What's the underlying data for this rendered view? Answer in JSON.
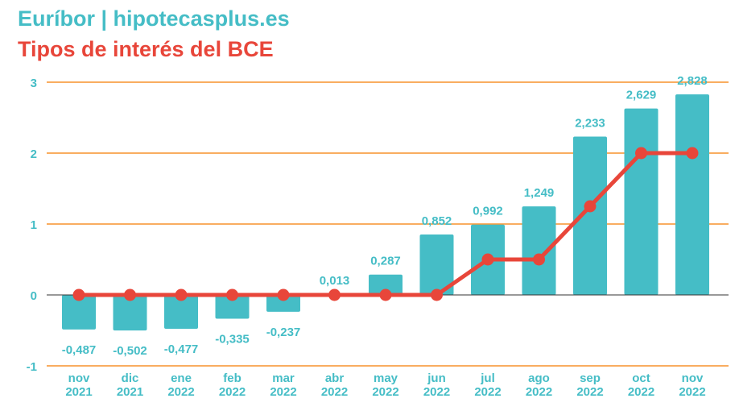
{
  "title": "Euríbor | hipotecasplus.es",
  "subtitle": "Tipos de interés del BCE",
  "colors": {
    "euribor": "#45bdc6",
    "bce": "#e8463a",
    "grid": "#f57c00",
    "zero": "#333333"
  },
  "chart_data": {
    "type": "bar",
    "categories": [
      [
        "nov",
        "2021"
      ],
      [
        "dic",
        "2021"
      ],
      [
        "ene",
        "2022"
      ],
      [
        "feb",
        "2022"
      ],
      [
        "mar",
        "2022"
      ],
      [
        "abr",
        "2022"
      ],
      [
        "may",
        "2022"
      ],
      [
        "jun",
        "2022"
      ],
      [
        "jul",
        "2022"
      ],
      [
        "ago",
        "2022"
      ],
      [
        "sep",
        "2022"
      ],
      [
        "oct",
        "2022"
      ],
      [
        "nov",
        "2022"
      ]
    ],
    "series": [
      {
        "name": "Euríbor",
        "type": "bar",
        "values": [
          -0.487,
          -0.502,
          -0.477,
          -0.335,
          -0.237,
          0.013,
          0.287,
          0.852,
          0.992,
          1.249,
          2.233,
          2.629,
          2.828
        ],
        "labels": [
          "-0,487",
          "-0,502",
          "-0,477",
          "-0,335",
          "-0,237",
          "0,013",
          "0,287",
          "0,852",
          "0,992",
          "1,249",
          "2,233",
          "2,629",
          "2,828"
        ]
      },
      {
        "name": "Tipos de interés del BCE",
        "type": "line",
        "values": [
          0,
          0,
          0,
          0,
          0,
          0,
          0,
          0,
          0.5,
          0.5,
          1.25,
          2,
          2
        ]
      }
    ],
    "ylim": [
      -1,
      3
    ],
    "yticks": [
      -1,
      0,
      1,
      2,
      3
    ],
    "grid": true
  }
}
